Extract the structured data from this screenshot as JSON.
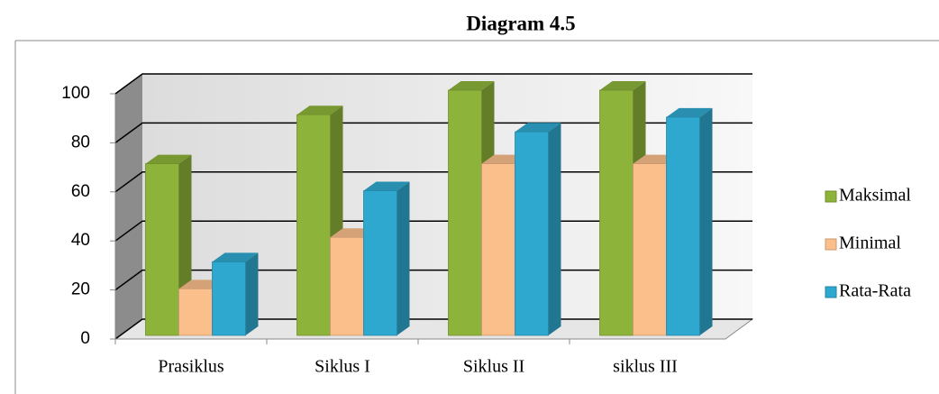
{
  "chart_data": {
    "type": "bar3d",
    "title": "Diagram 4.5",
    "categories": [
      "Prasiklus",
      "Siklus I",
      "Siklus II",
      "siklus III"
    ],
    "series": [
      {
        "name": "Maksimal",
        "color": "#8db33a",
        "values": [
          70,
          90,
          100,
          100
        ]
      },
      {
        "name": "Minimal",
        "color": "#fbbf8c",
        "values": [
          19,
          40,
          70,
          70
        ]
      },
      {
        "name": "Rata-Rata",
        "color": "#2fa8cf",
        "values": [
          30,
          59,
          83,
          89
        ]
      }
    ],
    "ylim": [
      0,
      100
    ],
    "yticks": [
      0,
      20,
      40,
      60,
      80,
      100
    ],
    "grid": true,
    "legend": "right"
  }
}
